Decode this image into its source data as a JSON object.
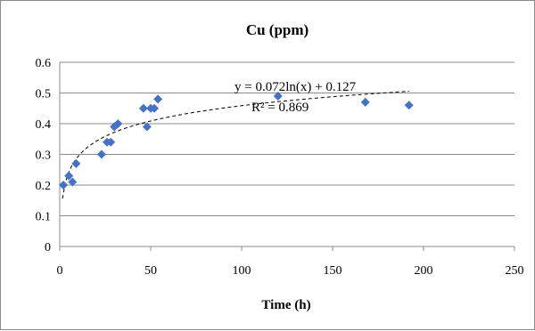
{
  "chart_data": {
    "type": "scatter",
    "title": "Cu (ppm)",
    "xlabel": "Time (h)",
    "ylabel": "",
    "xlim": [
      0,
      250
    ],
    "ylim": [
      0,
      0.6
    ],
    "x_ticks": [
      "0",
      "50",
      "100",
      "150",
      "200",
      "250"
    ],
    "y_ticks": [
      "0",
      "0.1",
      "0.2",
      "0.3",
      "0.4",
      "0.5",
      "0.6"
    ],
    "grid": "horizontal",
    "series": [
      {
        "marker_color": "#4472C4",
        "points": [
          [
            2,
            0.2
          ],
          [
            5,
            0.23
          ],
          [
            7,
            0.21
          ],
          [
            9,
            0.27
          ],
          [
            23,
            0.3
          ],
          [
            26,
            0.34
          ],
          [
            28,
            0.34
          ],
          [
            30,
            0.39
          ],
          [
            32,
            0.4
          ],
          [
            46,
            0.45
          ],
          [
            48,
            0.39
          ],
          [
            50,
            0.45
          ],
          [
            52,
            0.45
          ],
          [
            54,
            0.48
          ],
          [
            120,
            0.49
          ],
          [
            168,
            0.47
          ],
          [
            192,
            0.46
          ]
        ]
      }
    ],
    "trendline": {
      "type": "logarithmic",
      "a": 0.072,
      "b": 0.127,
      "style": "dashed",
      "equation_label": "y = 0.072ln(x) + 0.127",
      "r2_label": "R² = 0.869"
    }
  }
}
